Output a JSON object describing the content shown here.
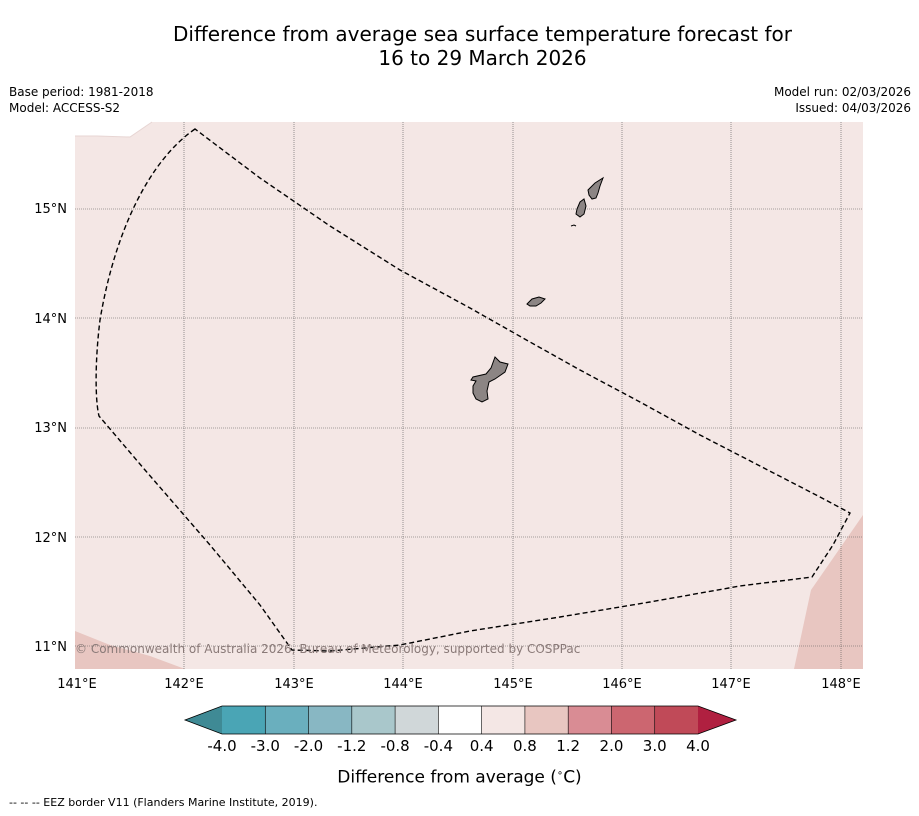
{
  "title": {
    "line1": "Difference from average sea surface temperature forecast for",
    "line2": "16 to 29 March 2026"
  },
  "meta": {
    "base_period": "Base period: 1981-2018",
    "model": "Model: ACCESS-S2",
    "model_run": "Model run: 02/03/2026",
    "issued": "Issued: 04/03/2026"
  },
  "map": {
    "lat_labels": [
      "15°N",
      "14°N",
      "13°N",
      "12°N",
      "11°N"
    ],
    "lon_labels": [
      "141°E",
      "142°E",
      "143°E",
      "144°E",
      "145°E",
      "146°E",
      "147°E",
      "148°E"
    ],
    "copyright": "© Commonwealth of Australia 2026, Bureau of Meteorology, supported by COSPPac",
    "colors": {
      "sea_anomaly": "#f4e7e5",
      "warmer_patch": "#e8c6c1",
      "land": "#8c8584"
    },
    "islands": [
      "Guam",
      "Rota",
      "Tinian",
      "Saipan"
    ]
  },
  "colorbar": {
    "ticks": [
      "-4.0",
      "-3.0",
      "-2.0",
      "-1.2",
      "-0.8",
      "-0.4",
      "0.4",
      "0.8",
      "1.2",
      "2.0",
      "3.0",
      "4.0"
    ],
    "colors": [
      "#4aa5b5",
      "#6aafbe",
      "#88b7c3",
      "#a9c7cb",
      "#d0d7d9",
      "#ffffff",
      "#f4e7e5",
      "#e8c6c1",
      "#d98c94",
      "#cc6670",
      "#c04a58"
    ],
    "low_extend_color": "#3f8a95",
    "high_extend_color": "#b02040",
    "label": "Difference from average (",
    "unit_super": "∘",
    "unit": "C)"
  },
  "footer": {
    "legend": "--  --  -- EEZ border V11 (Flanders Marine Institute, 2019)."
  }
}
